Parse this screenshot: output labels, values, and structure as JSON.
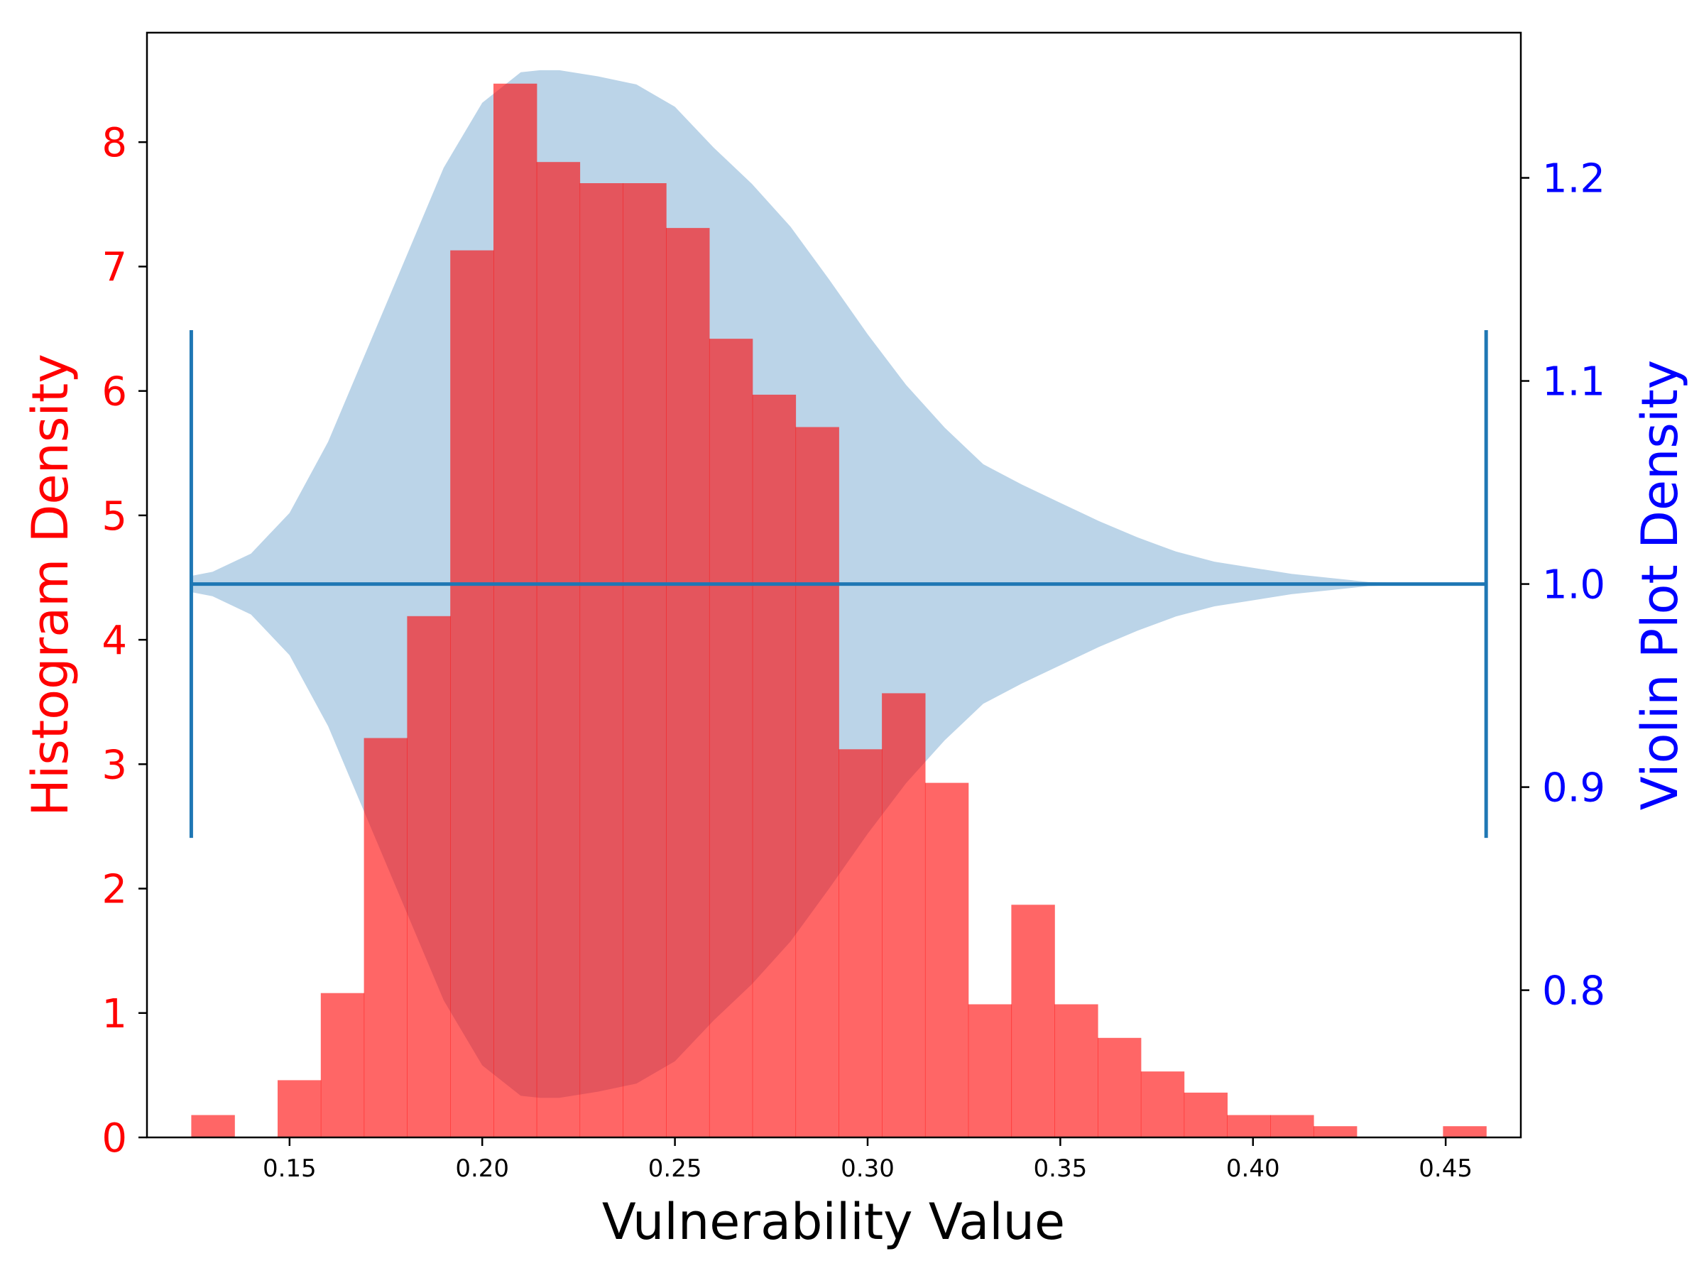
{
  "chart_data": {
    "type": "histogram+violin",
    "xlabel": "Vulnerability Value",
    "ylabel_left": "Histogram Density",
    "ylabel_right": "Violin Plot Density",
    "xlim": [
      0.113,
      0.4695
    ],
    "ylim_left": [
      0,
      8.88
    ],
    "ylim_right": [
      0.7275,
      1.2715
    ],
    "xticks": [
      "0.15",
      "0.20",
      "0.25",
      "0.30",
      "0.35",
      "0.40",
      "0.45"
    ],
    "xtick_values": [
      0.15,
      0.2,
      0.25,
      0.3,
      0.35,
      0.4,
      0.45
    ],
    "yticks_left": [
      "0",
      "1",
      "2",
      "3",
      "4",
      "5",
      "6",
      "7",
      "8"
    ],
    "ytick_values_left": [
      0,
      1,
      2,
      3,
      4,
      5,
      6,
      7,
      8
    ],
    "yticks_right": [
      "0.8",
      "0.9",
      "1.0",
      "1.1",
      "1.2"
    ],
    "ytick_values_right": [
      0.8,
      0.9,
      1.0,
      1.1,
      1.2
    ],
    "histogram": {
      "bin_edges": [
        0.1245,
        0.1357,
        0.1469,
        0.1581,
        0.1693,
        0.1805,
        0.1917,
        0.2029,
        0.2141,
        0.2253,
        0.2365,
        0.2477,
        0.2589,
        0.2701,
        0.2813,
        0.2925,
        0.3037,
        0.3149,
        0.3261,
        0.3373,
        0.3485,
        0.3597,
        0.3709,
        0.3821,
        0.3933,
        0.4045,
        0.4157,
        0.4269,
        0.4381,
        0.4493,
        0.4605
      ],
      "values": [
        0.18,
        0,
        0.46,
        1.16,
        3.21,
        4.19,
        7.13,
        8.47,
        7.84,
        7.67,
        7.67,
        7.31,
        6.42,
        5.97,
        5.71,
        3.12,
        3.57,
        2.85,
        1.07,
        1.87,
        1.07,
        0.8,
        0.53,
        0.36,
        0.18,
        0.18,
        0.09,
        0,
        0,
        0.09
      ],
      "color": "#ff0000",
      "alpha": 0.6
    },
    "violin": {
      "center": 1.0,
      "xmin": 0.1245,
      "xmax": 0.4605,
      "y_min_line": 0.875,
      "y_max_line": 1.125,
      "x": [
        0.1245,
        0.13,
        0.14,
        0.15,
        0.16,
        0.17,
        0.18,
        0.19,
        0.2,
        0.21,
        0.215,
        0.22,
        0.23,
        0.24,
        0.25,
        0.26,
        0.27,
        0.28,
        0.29,
        0.3,
        0.31,
        0.32,
        0.33,
        0.34,
        0.35,
        0.36,
        0.37,
        0.38,
        0.39,
        0.4,
        0.41,
        0.42,
        0.43,
        0.44,
        0.4605
      ],
      "half_width": [
        0.004,
        0.006,
        0.015,
        0.035,
        0.07,
        0.115,
        0.16,
        0.205,
        0.237,
        0.252,
        0.253,
        0.253,
        0.25,
        0.246,
        0.235,
        0.215,
        0.197,
        0.176,
        0.15,
        0.123,
        0.098,
        0.077,
        0.059,
        0.049,
        0.04,
        0.031,
        0.023,
        0.016,
        0.011,
        0.008,
        0.005,
        0.003,
        0.001,
        0.0005,
        0
      ],
      "color": "#1f77b4",
      "fill_color": "#bbd4e8"
    },
    "colors": {
      "left_axis": "#ff0000",
      "right_axis": "#0000ff",
      "violin_line": "#1f77b4"
    }
  }
}
